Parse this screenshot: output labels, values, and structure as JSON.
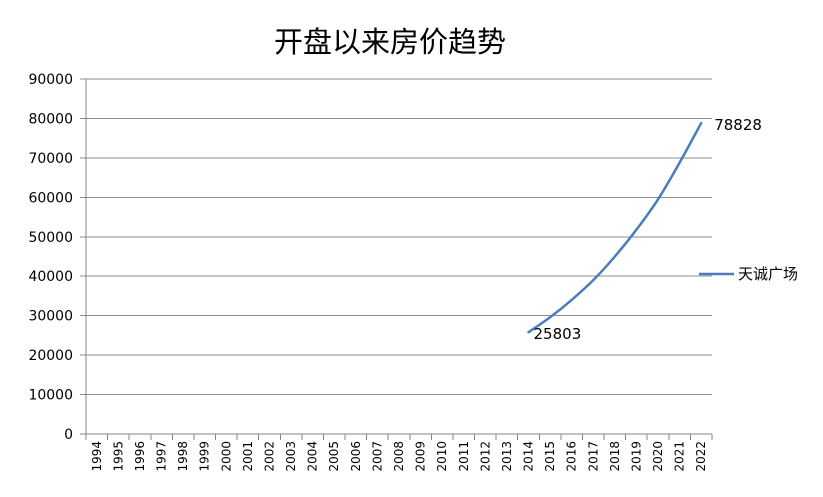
{
  "chart_data": {
    "type": "line",
    "title": "开盘以来房价趋势",
    "xlabel": "",
    "ylabel": "",
    "categories": [
      "1994",
      "1995",
      "1996",
      "1997",
      "1998",
      "1999",
      "2000",
      "2001",
      "2002",
      "2003",
      "2004",
      "2005",
      "2006",
      "2007",
      "2008",
      "2009",
      "2010",
      "2011",
      "2012",
      "2013",
      "2014",
      "2015",
      "2016",
      "2017",
      "2018",
      "2019",
      "2020",
      "2021",
      "2022"
    ],
    "series": [
      {
        "name": "天诚广场",
        "color": "#4a7ebb",
        "values": [
          null,
          null,
          null,
          null,
          null,
          null,
          null,
          null,
          null,
          null,
          null,
          null,
          null,
          null,
          null,
          null,
          null,
          null,
          null,
          null,
          25803,
          29600,
          34000,
          39000,
          45000,
          51800,
          59500,
          68800,
          78828
        ]
      }
    ],
    "data_labels": [
      {
        "category": "2014",
        "text": "25803"
      },
      {
        "category": "2022",
        "text": "78828"
      }
    ],
    "ylim": [
      0,
      90000
    ],
    "yticks": [
      0,
      10000,
      20000,
      30000,
      40000,
      50000,
      60000,
      70000,
      80000,
      90000
    ],
    "grid": true,
    "legend_position": "right"
  }
}
